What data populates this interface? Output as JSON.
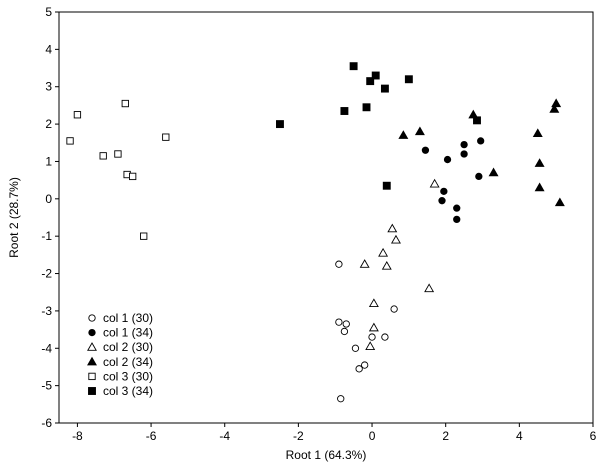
{
  "chart_data": {
    "type": "scatter",
    "title": "",
    "xlabel": "Root 1 (64.3%)",
    "ylabel": "Root 2 (28.7%)",
    "xlim": [
      -8.5,
      6
    ],
    "ylim": [
      -6,
      5
    ],
    "xticks": [
      -8,
      -6,
      -4,
      -2,
      0,
      2,
      4,
      6
    ],
    "yticks": [
      -6,
      -5,
      -4,
      -3,
      -2,
      -1,
      0,
      1,
      2,
      3,
      4,
      5
    ],
    "grid": false,
    "legend_position": "bottom-left",
    "series": [
      {
        "name": "col 1 (30)",
        "marker": "circle-open",
        "points": [
          [
            -0.9,
            -1.75
          ],
          [
            -0.9,
            -3.3
          ],
          [
            -0.7,
            -3.35
          ],
          [
            -0.75,
            -3.55
          ],
          [
            -0.45,
            -4.0
          ],
          [
            -0.35,
            -4.55
          ],
          [
            -0.2,
            -4.45
          ],
          [
            0.0,
            -3.7
          ],
          [
            0.35,
            -3.7
          ],
          [
            0.6,
            -2.95
          ],
          [
            -0.85,
            -5.35
          ]
        ]
      },
      {
        "name": "col 1 (34)",
        "marker": "circle-filled",
        "points": [
          [
            1.45,
            1.3
          ],
          [
            1.95,
            0.2
          ],
          [
            1.9,
            -0.05
          ],
          [
            2.05,
            1.05
          ],
          [
            2.3,
            -0.25
          ],
          [
            2.3,
            -0.55
          ],
          [
            2.5,
            1.45
          ],
          [
            2.5,
            1.2
          ],
          [
            2.9,
            0.6
          ],
          [
            2.95,
            1.55
          ]
        ]
      },
      {
        "name": "col 2 (30)",
        "marker": "triangle-open",
        "points": [
          [
            -0.2,
            -1.75
          ],
          [
            0.05,
            -2.8
          ],
          [
            0.05,
            -3.45
          ],
          [
            -0.05,
            -3.95
          ],
          [
            0.3,
            -1.45
          ],
          [
            0.4,
            -1.8
          ],
          [
            0.55,
            -0.8
          ],
          [
            0.65,
            -1.1
          ],
          [
            1.55,
            -2.4
          ],
          [
            1.7,
            0.4
          ]
        ]
      },
      {
        "name": "col 2 (34)",
        "marker": "triangle-filled",
        "points": [
          [
            0.85,
            1.7
          ],
          [
            1.3,
            1.8
          ],
          [
            2.75,
            2.25
          ],
          [
            3.3,
            0.7
          ],
          [
            4.5,
            1.75
          ],
          [
            4.55,
            0.95
          ],
          [
            4.55,
            0.3
          ],
          [
            4.95,
            2.4
          ],
          [
            5.0,
            2.55
          ],
          [
            5.1,
            -0.1
          ]
        ]
      },
      {
        "name": "col 3 (30)",
        "marker": "square-open",
        "points": [
          [
            -8.2,
            1.55
          ],
          [
            -8.0,
            2.25
          ],
          [
            -7.3,
            1.15
          ],
          [
            -6.9,
            1.2
          ],
          [
            -6.7,
            2.55
          ],
          [
            -6.65,
            0.65
          ],
          [
            -6.5,
            0.6
          ],
          [
            -6.2,
            -1.0
          ],
          [
            -5.6,
            1.65
          ]
        ]
      },
      {
        "name": "col 3 (34)",
        "marker": "square-filled",
        "points": [
          [
            -2.5,
            2.0
          ],
          [
            -0.75,
            2.35
          ],
          [
            -0.5,
            3.55
          ],
          [
            -0.15,
            2.45
          ],
          [
            -0.05,
            3.15
          ],
          [
            0.1,
            3.3
          ],
          [
            0.35,
            2.95
          ],
          [
            0.4,
            0.35
          ],
          [
            1.0,
            3.2
          ],
          [
            2.85,
            2.1
          ]
        ]
      }
    ]
  }
}
